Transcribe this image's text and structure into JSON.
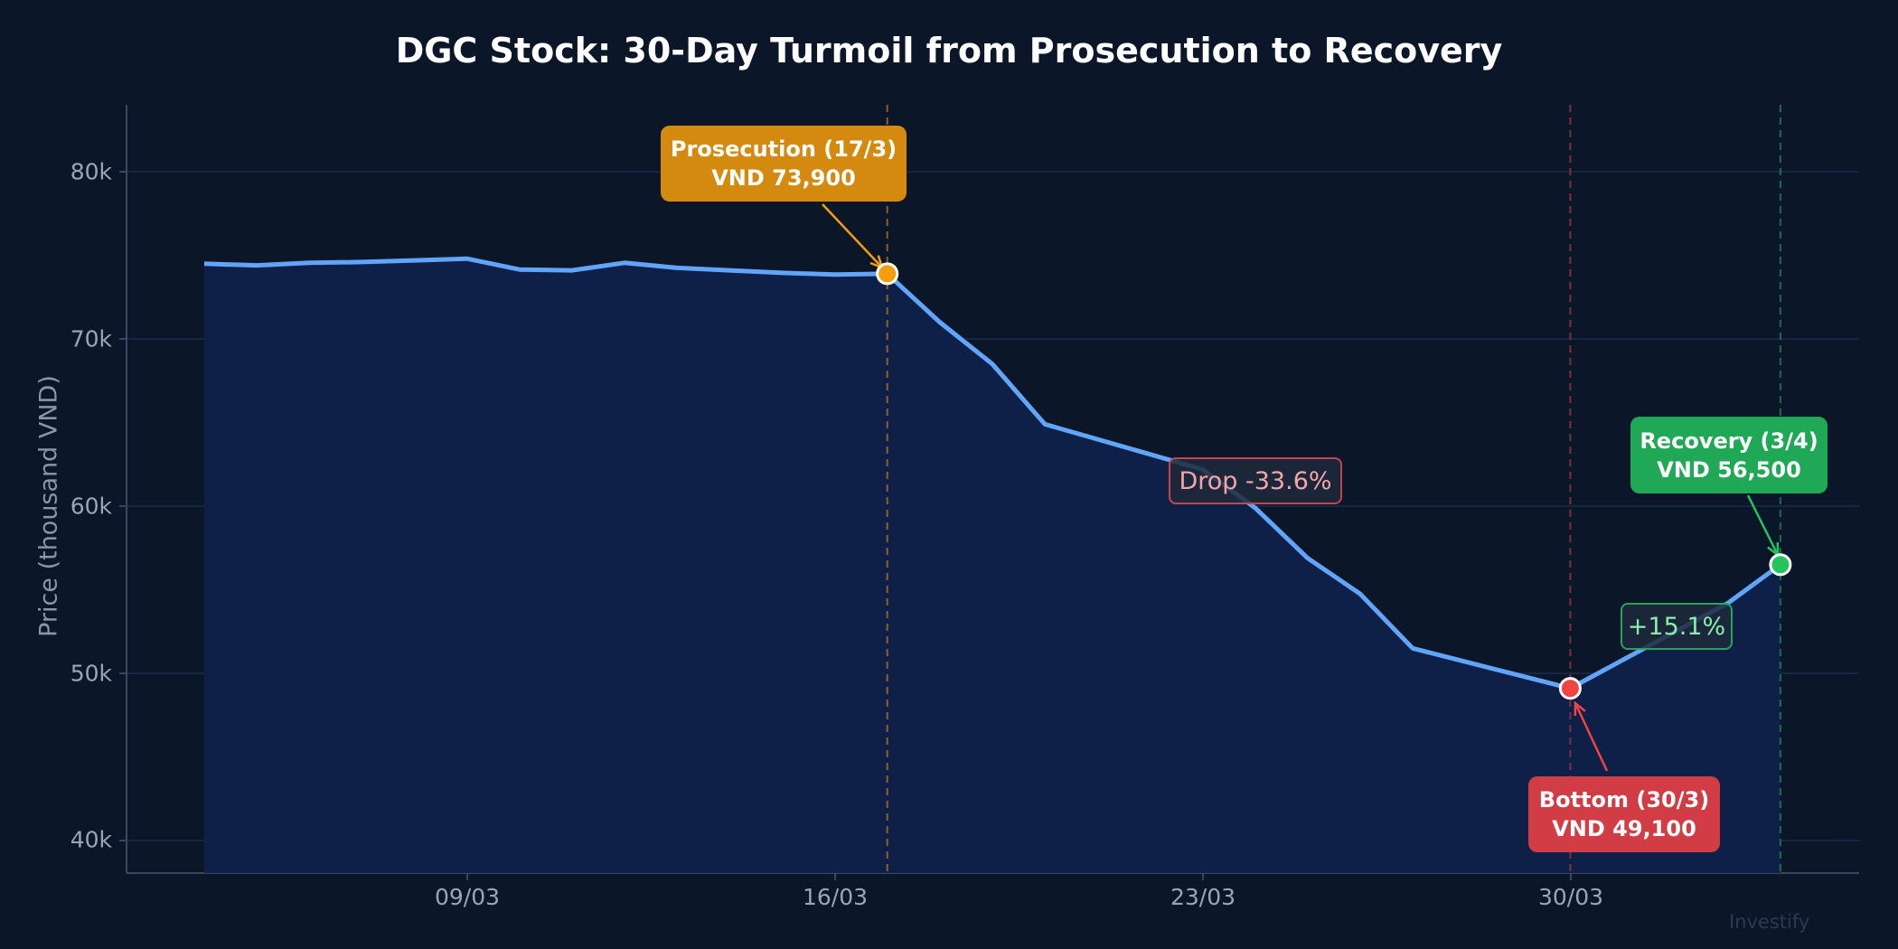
{
  "chart_data": {
    "type": "line",
    "title": "DGC Stock: 30-Day Turmoil from Prosecution to Recovery",
    "xlabel": "",
    "ylabel": "Price (thousand VND)",
    "ylim": [
      38000,
      84000
    ],
    "yticks": [
      40000,
      50000,
      60000,
      70000,
      80000
    ],
    "ytick_labels": [
      "40k",
      "50k",
      "60k",
      "70k",
      "80k"
    ],
    "xtick_labels": [
      "09/03",
      "16/03",
      "23/03",
      "30/03"
    ],
    "grid": true,
    "area_fill": true,
    "x": [
      "04/03",
      "05/03",
      "06/03",
      "07/03",
      "08/03",
      "09/03",
      "10/03",
      "11/03",
      "12/03",
      "13/03",
      "14/03",
      "15/03",
      "16/03",
      "17/03",
      "18/03",
      "19/03",
      "20/03",
      "21/03",
      "22/03",
      "23/03",
      "24/03",
      "25/03",
      "26/03",
      "27/03",
      "28/03",
      "29/03",
      "30/03",
      "31/03",
      "01/04",
      "02/04",
      "03/04"
    ],
    "series": [
      {
        "name": "DGC",
        "values": [
          74500,
          74400,
          74550,
          74600,
          74700,
          74800,
          74150,
          74100,
          74550,
          74250,
          74100,
          73950,
          73850,
          73900,
          71000,
          68500,
          64900,
          64000,
          63100,
          62200,
          59900,
          56900,
          54750,
          51500,
          50700,
          49900,
          49100,
          50800,
          52500,
          54200,
          56500
        ]
      }
    ],
    "annotations": [
      {
        "label": "Prosecution (17/3)",
        "value_text": "VND 73,900",
        "date": "17/03",
        "value": 73900,
        "color": "#d4890f",
        "marker": "#f59e0b"
      },
      {
        "label": "Bottom (30/3)",
        "value_text": "VND 49,100",
        "date": "30/03",
        "value": 49100,
        "color": "#d13c45",
        "marker": "#ef4444"
      },
      {
        "label": "Recovery (3/4)",
        "value_text": "VND 56,500",
        "date": "03/04",
        "value": 56500,
        "color": "#1fa855",
        "marker": "#22c55e"
      }
    ],
    "change_labels": [
      {
        "text": "Drop -33.6%",
        "color": "#f4a5ab",
        "border": "#d14a55"
      },
      {
        "text": "+15.1%",
        "color": "#86efac",
        "border": "#22a55a"
      }
    ]
  },
  "colors": {
    "background": "#0b1628",
    "line": "#60a5fa",
    "fill": "#0f2149",
    "grid": "#1a2b4a"
  },
  "watermark": "Investify"
}
